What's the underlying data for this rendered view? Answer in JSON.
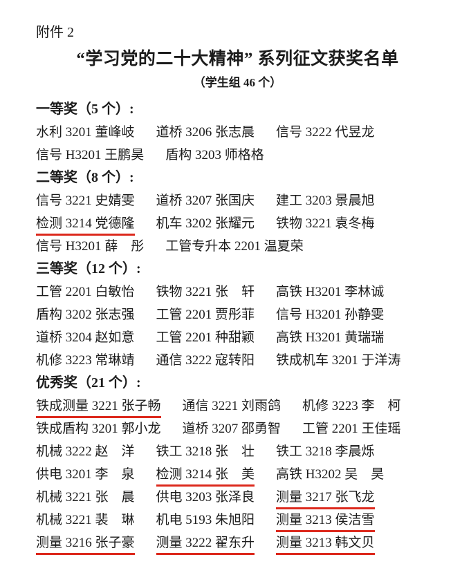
{
  "page": {
    "attachment_label": "附件 2",
    "title": "“学习党的二十大精神” 系列征文获奖名单",
    "subtitle": "（学生组 46 个）",
    "text_color": "#1c1c1c",
    "underline_color": "#dc281c",
    "background_color": "#ffffff"
  },
  "sections": [
    {
      "heading": "一等奖（5 个）:",
      "rows": [
        [
          {
            "text": "水利 3201 董峰岐",
            "underline": false
          },
          {
            "text": "道桥 3206 张志晨",
            "underline": false
          },
          {
            "text": "信号 3222 代昱龙",
            "underline": false
          }
        ],
        [
          {
            "text": "信号 H3201 王鹏昊",
            "underline": false
          },
          {
            "text": "盾构 3203 师格格",
            "underline": false
          }
        ]
      ]
    },
    {
      "heading": "二等奖（8 个）:",
      "rows": [
        [
          {
            "text": "信号 3221 史婧雯",
            "underline": false
          },
          {
            "text": "道桥 3207 张国庆",
            "underline": false
          },
          {
            "text": "建工 3203 景晨旭",
            "underline": false
          }
        ],
        [
          {
            "text": "检测 3214 党德隆",
            "underline": true
          },
          {
            "text": "机车 3202 张耀元",
            "underline": false
          },
          {
            "text": "铁物 3221 袁冬梅",
            "underline": false
          }
        ],
        [
          {
            "text": "信号 H3201 薛　彤",
            "underline": false
          },
          {
            "text": "工管专升本 2201 温夏荣",
            "underline": false
          }
        ]
      ]
    },
    {
      "heading": "三等奖（12 个）:",
      "rows": [
        [
          {
            "text": "工管 2201 白敏怡",
            "underline": false
          },
          {
            "text": "铁物 3221 张　轩",
            "underline": false
          },
          {
            "text": "高铁 H3201 李林诚",
            "underline": false
          }
        ],
        [
          {
            "text": "盾构 3202 张志强",
            "underline": false
          },
          {
            "text": "工管 2201 贾彤菲",
            "underline": false
          },
          {
            "text": "信号 H3201 孙静雯",
            "underline": false
          }
        ],
        [
          {
            "text": "道桥 3204 赵如意",
            "underline": false
          },
          {
            "text": "工管 2201 种甜颖",
            "underline": false
          },
          {
            "text": "高铁 H3201 黄瑞瑞",
            "underline": false
          }
        ],
        [
          {
            "text": "机修 3223 常琳靖",
            "underline": false
          },
          {
            "text": "通信 3222 寇转阳",
            "underline": false
          },
          {
            "text": "铁成机车 3201 于洋涛",
            "underline": false
          }
        ]
      ]
    },
    {
      "heading": "优秀奖（21 个）:",
      "rows": [
        [
          {
            "text": "铁成测量 3221 张子畅",
            "underline": true
          },
          {
            "text": "通信 3221 刘雨鸽",
            "underline": false
          },
          {
            "text": "机修 3223 李　柯",
            "underline": false
          }
        ],
        [
          {
            "text": "铁成盾构 3201 郭小龙",
            "underline": false
          },
          {
            "text": "道桥 3207 邵勇智",
            "underline": false
          },
          {
            "text": "工管 2201 王佳瑶",
            "underline": false
          }
        ],
        [
          {
            "text": "机械 3222 赵　洋",
            "underline": false
          },
          {
            "text": "铁工 3218 张　壮",
            "underline": false
          },
          {
            "text": "铁工 3218 李晨烁",
            "underline": false
          }
        ],
        [
          {
            "text": "供电 3201 李　泉",
            "underline": false
          },
          {
            "text": "检测 3214 张　美",
            "underline": true
          },
          {
            "text": "高铁 H3202 吴　昊",
            "underline": false
          }
        ],
        [
          {
            "text": "机械 3221 张　晨",
            "underline": false
          },
          {
            "text": "供电 3203 张泽良",
            "underline": false
          },
          {
            "text": "测量 3217 张飞龙",
            "underline": true
          }
        ],
        [
          {
            "text": "机械 3221 裴　琳",
            "underline": false
          },
          {
            "text": "机电 5193 朱旭阳",
            "underline": false
          },
          {
            "text": "测量 3213 侯洁雪",
            "underline": true
          }
        ],
        [
          {
            "text": "测量 3216 张子豪",
            "underline": true
          },
          {
            "text": "测量 3222 翟东升",
            "underline": true
          },
          {
            "text": "测量 3213 韩文贝",
            "underline": true
          }
        ]
      ]
    }
  ]
}
